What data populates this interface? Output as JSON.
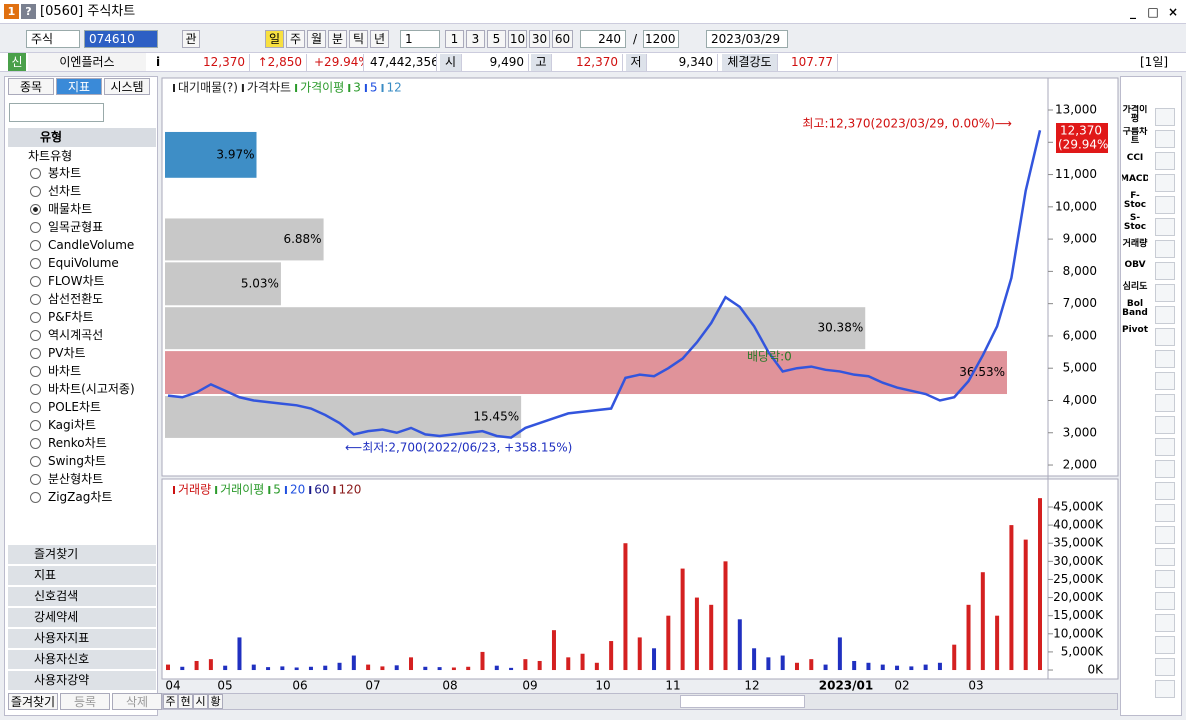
{
  "window": {
    "badges": [
      "1",
      "?"
    ],
    "title": "[0560] 주식차트"
  },
  "toolbar": {
    "market": "주식",
    "code": "074610",
    "button": "관",
    "periods": [
      "일",
      "주",
      "월",
      "분",
      "틱",
      "년"
    ],
    "interval": "1",
    "presets": [
      "1",
      "3",
      "5",
      "10",
      "30",
      "60"
    ],
    "count": "240",
    "separator": "/",
    "total": "1200",
    "date": "2023/03/29"
  },
  "quote": {
    "tag": "신",
    "name": "이엔플러스",
    "info": "i",
    "price": "12,370",
    "change": "↑2,850",
    "rate": "+29.94%",
    "volume": "47,442,356",
    "open_label": "시",
    "open": "9,490",
    "high_label": "고",
    "high": "12,370",
    "low_label": "저",
    "low": "9,340",
    "strength_label": "체결강도",
    "strength": "107.77",
    "period": "[1일]"
  },
  "left_panel": {
    "tabs": [
      "종목",
      "지표",
      "시스템"
    ],
    "group": "유형",
    "subgroup": "차트유형",
    "chart_types": [
      "봉차트",
      "선차트",
      "매물차트",
      "일목균형표",
      "CandleVolume",
      "EquiVolume",
      "FLOW차트",
      "삼선전환도",
      "P&F차트",
      "역시계곡선",
      "PV차트",
      "바차트",
      "바차트(시고저종)",
      "POLE차트",
      "Kagi차트",
      "Renko차트",
      "Swing차트",
      "분산형차트",
      "ZigZag차트"
    ],
    "selected": 2,
    "folders": [
      "즐겨찾기",
      "지표",
      "신호검색",
      "강세약세",
      "사용자지표",
      "사용자신호",
      "사용자강약"
    ],
    "bottom_tabs": [
      "즐겨찾기",
      "등록",
      "삭제"
    ]
  },
  "price_chart": {
    "legend": [
      {
        "label": "대기매물(?)",
        "color": "#222222"
      },
      {
        "label": "가격차트",
        "color": "#222222"
      },
      {
        "label": "가격이평",
        "color": "#2a9a2a"
      },
      {
        "label": "3",
        "color": "#2a9a2a"
      },
      {
        "label": "5",
        "color": "#2050e0"
      },
      {
        "label": "12",
        "color": "#3a8cc4"
      }
    ],
    "ylim": [
      1660,
      13930
    ],
    "yticks": [
      {
        "value": 2000,
        "label": "2,000"
      },
      {
        "value": 3000,
        "label": "3,000"
      },
      {
        "value": 4000,
        "label": "4,000"
      },
      {
        "value": 5000,
        "label": "5,000"
      },
      {
        "value": 6000,
        "label": "6,000"
      },
      {
        "value": 7000,
        "label": "7,000"
      },
      {
        "value": 8000,
        "label": "8,000"
      },
      {
        "value": 9000,
        "label": "9,000"
      },
      {
        "value": 10000,
        "label": "10,000"
      },
      {
        "value": 11000,
        "label": "11,000"
      },
      {
        "value": 12000,
        "label": "12,000"
      },
      {
        "value": 13000,
        "label": "13,000"
      }
    ],
    "profile": [
      {
        "low": 10900,
        "high": 12320,
        "value": 3.97,
        "label": "3.97%",
        "color": "#3e8ec6"
      },
      {
        "low": 8340,
        "high": 9640,
        "value": 6.88,
        "label": "6.88%",
        "color": "#c8c8c8"
      },
      {
        "low": 6950,
        "high": 8280,
        "value": 5.03,
        "label": "5.03%",
        "color": "#c8c8c8"
      },
      {
        "low": 5590,
        "high": 6890,
        "value": 30.38,
        "label": "30.38%",
        "color": "#c8c8c8"
      },
      {
        "low": 4200,
        "high": 5530,
        "value": 36.53,
        "label": "36.53%",
        "color": "#e0939a"
      },
      {
        "low": 2840,
        "high": 4140,
        "value": 15.45,
        "label": "15.45%",
        "color": "#c8c8c8"
      }
    ],
    "close": [
      4150,
      4100,
      4250,
      4500,
      4300,
      4100,
      4000,
      3950,
      3900,
      3850,
      3750,
      3550,
      3300,
      2950,
      3050,
      3100,
      3000,
      3150,
      2950,
      2900,
      2950,
      3000,
      3050,
      2900,
      2850,
      3150,
      3300,
      3450,
      3600,
      3650,
      3700,
      3750,
      4700,
      4800,
      4750,
      5000,
      5300,
      5800,
      6400,
      7200,
      6900,
      6300,
      5500,
      4900,
      5000,
      5050,
      4950,
      4900,
      4800,
      4750,
      4550,
      4400,
      4300,
      4200,
      4000,
      4100,
      4600,
      5400,
      6300,
      7800,
      10500,
      12370
    ],
    "line_color": "#3355dd",
    "high_note": "최고:12,370(2023/03/29, 0.00%)⟶",
    "low_note": "⟵최저:2,700(2022/06/23, +358.15%)",
    "dividend_note": "배당락:0",
    "price_tag": "12,370",
    "rate_tag": "(29.94%)"
  },
  "volume_chart": {
    "legend": [
      {
        "label": "거래량",
        "color": "#cc1111"
      },
      {
        "label": "거래이평",
        "color": "#2a9a2a"
      },
      {
        "label": "5",
        "color": "#2a9a2a"
      },
      {
        "label": "20",
        "color": "#2050e0"
      },
      {
        "label": "60",
        "color": "#1a1a8a"
      },
      {
        "label": "120",
        "color": "#8a1a1a"
      }
    ],
    "ylim": [
      -2200,
      51900
    ],
    "yticks": [
      {
        "value": 0,
        "label": "0K"
      },
      {
        "value": 5000,
        "label": "5,000K"
      },
      {
        "value": 10000,
        "label": "10,000K"
      },
      {
        "value": 15000,
        "label": "15,000K"
      },
      {
        "value": 20000,
        "label": "20,000K"
      },
      {
        "value": 25000,
        "label": "25,000K"
      },
      {
        "value": 30000,
        "label": "30,000K"
      },
      {
        "value": 35000,
        "label": "35,000K"
      },
      {
        "value": 40000,
        "label": "40,000K"
      },
      {
        "value": 45000,
        "label": "45,000K"
      }
    ],
    "values": [
      1500,
      900,
      2500,
      3000,
      1200,
      9000,
      1500,
      800,
      1000,
      700,
      900,
      1200,
      2000,
      4000,
      1500,
      1000,
      1300,
      3500,
      900,
      800,
      700,
      900,
      5000,
      1200,
      600,
      3000,
      2500,
      11000,
      3500,
      4500,
      2000,
      8000,
      35000,
      9000,
      6000,
      15000,
      28000,
      20000,
      18000,
      30000,
      14000,
      6000,
      3500,
      4000,
      2000,
      3000,
      1500,
      9000,
      2500,
      2000,
      1500,
      1200,
      1000,
      1500,
      2000,
      7000,
      18000,
      27000,
      15000,
      40000,
      36000,
      47442
    ],
    "up_color": "#d42020",
    "down_color": "#2030c0"
  },
  "x_labels": [
    "04",
    "05",
    "06",
    "07",
    "08",
    "09",
    "10",
    "11",
    "12",
    "2023/01",
    "02",
    "03"
  ],
  "bottom_bar": [
    "주",
    "현",
    "시",
    "황"
  ],
  "right_toolbar": [
    "가격이평",
    "구름차트",
    "CCI",
    "MACD",
    "F-Stoc",
    "S-Stoc",
    "거래량",
    "OBV",
    "심리도",
    "Bol Band",
    "Pivot"
  ]
}
